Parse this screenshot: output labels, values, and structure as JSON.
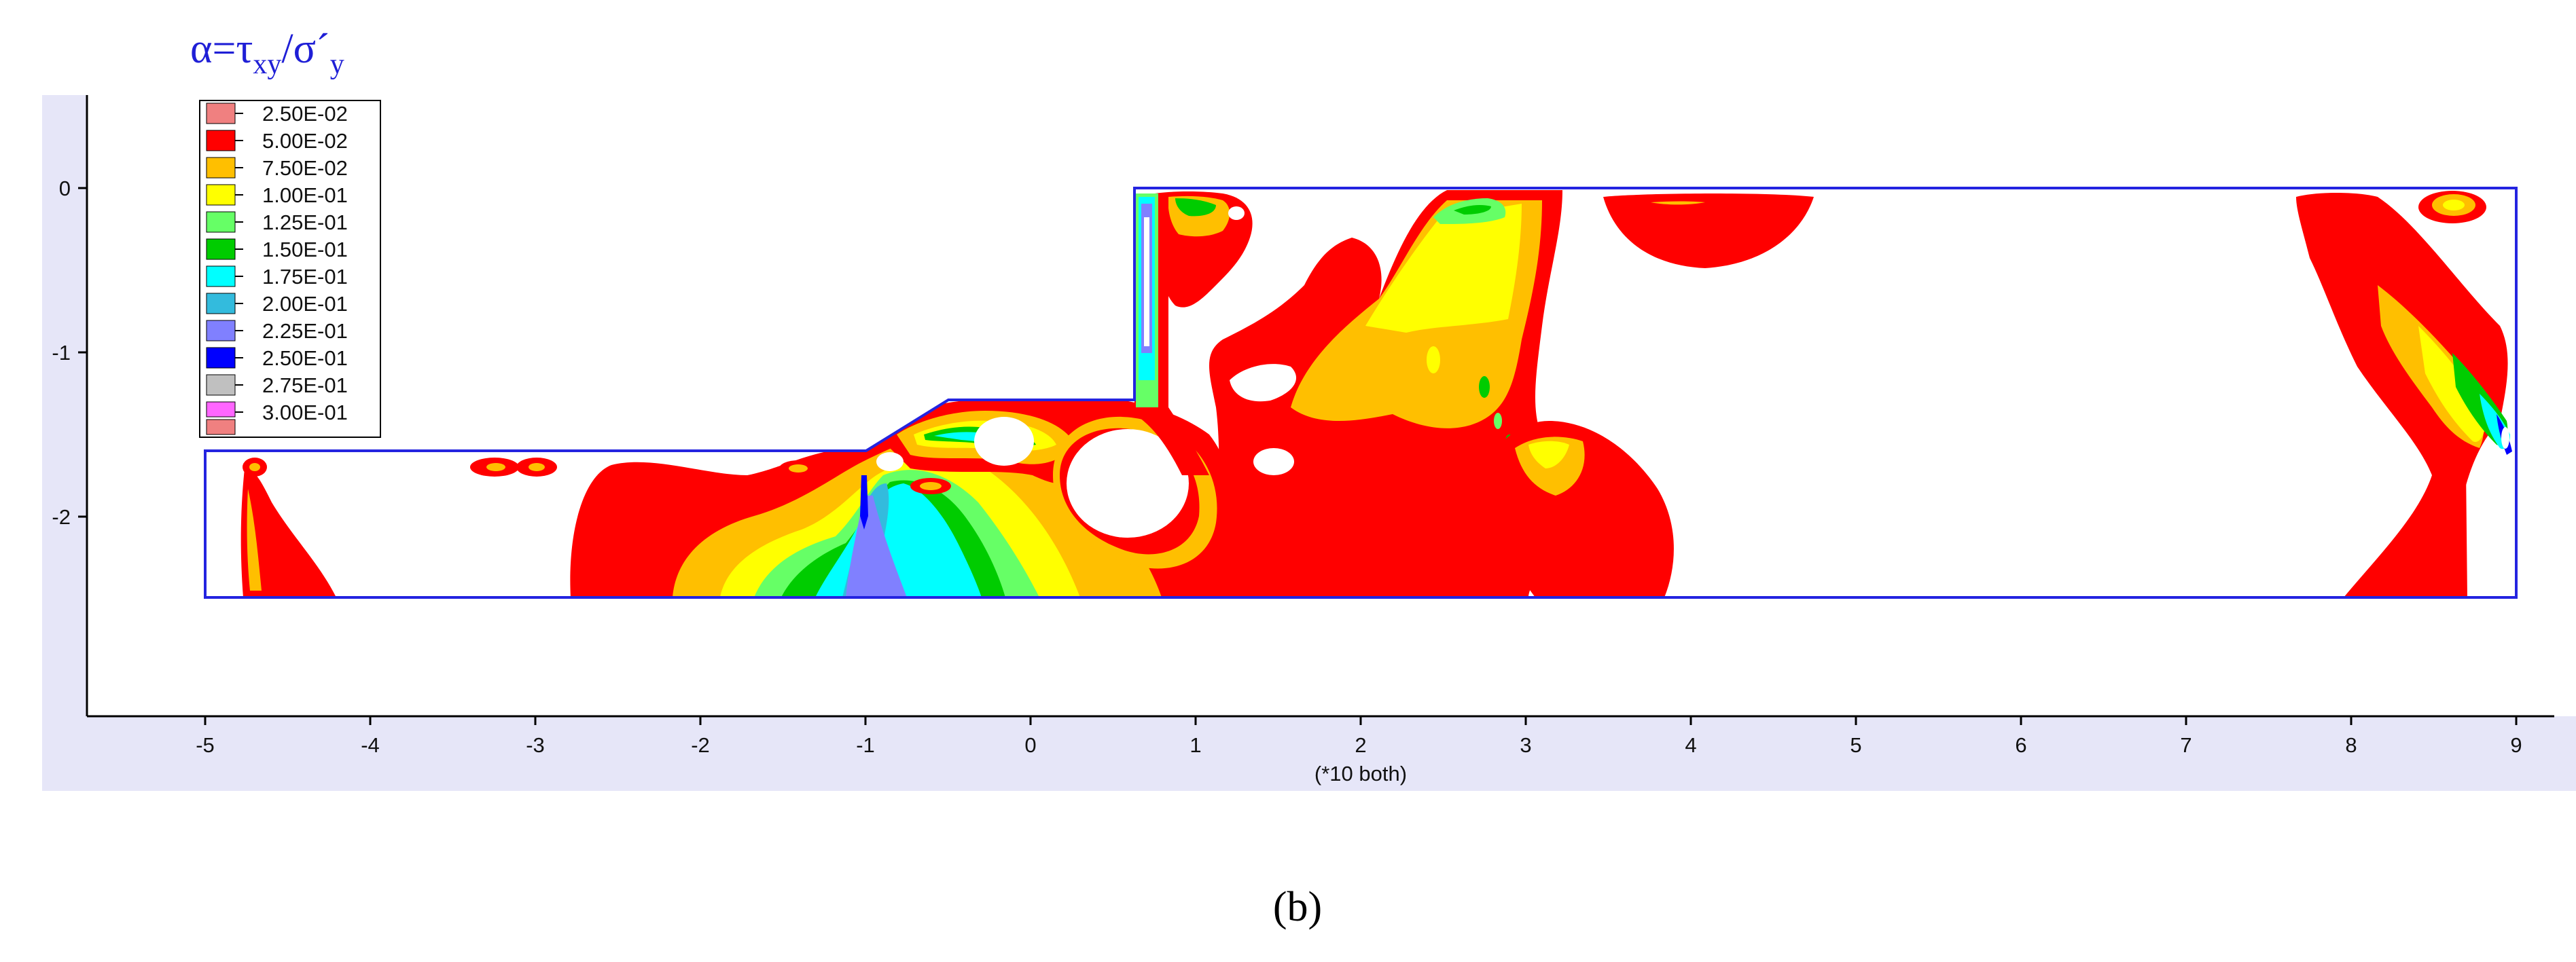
{
  "title": {
    "alpha": "α",
    "equals": "=",
    "tau": "τ",
    "tau_sub": "xy",
    "slash": "/",
    "sigma": "σ´",
    "sigma_sub": "y"
  },
  "legend": {
    "entries": [
      {
        "label": "2.50E-02",
        "color": "#f08080"
      },
      {
        "label": "5.00E-02",
        "color": "#ff0000"
      },
      {
        "label": "7.50E-02",
        "color": "#ffbf00"
      },
      {
        "label": "1.00E-01",
        "color": "#ffff00"
      },
      {
        "label": "1.25E-01",
        "color": "#66ff66"
      },
      {
        "label": "1.50E-01",
        "color": "#00cc00"
      },
      {
        "label": "1.75E-01",
        "color": "#00ffff"
      },
      {
        "label": "2.00E-01",
        "color": "#33bbdd"
      },
      {
        "label": "2.25E-01",
        "color": "#8080ff"
      },
      {
        "label": "2.50E-01",
        "color": "#0000ff"
      },
      {
        "label": "2.75E-01",
        "color": "#c0c0c0"
      },
      {
        "label": "3.00E-01",
        "color": "#ff66ff"
      }
    ],
    "extra_swatch_color": "#f08080"
  },
  "axes": {
    "x_ticks": [
      "-5",
      "-4",
      "-3",
      "-2",
      "-1",
      "0",
      "1",
      "2",
      "3",
      "4",
      "5",
      "6",
      "7",
      "8",
      "9"
    ],
    "y_ticks": [
      "0",
      "-1",
      "-2"
    ],
    "x_unit_label": "(*10 both)"
  },
  "caption": "(b)",
  "colors": {
    "plot_background": "#e6e6f8",
    "outline": "#2424e0"
  }
}
